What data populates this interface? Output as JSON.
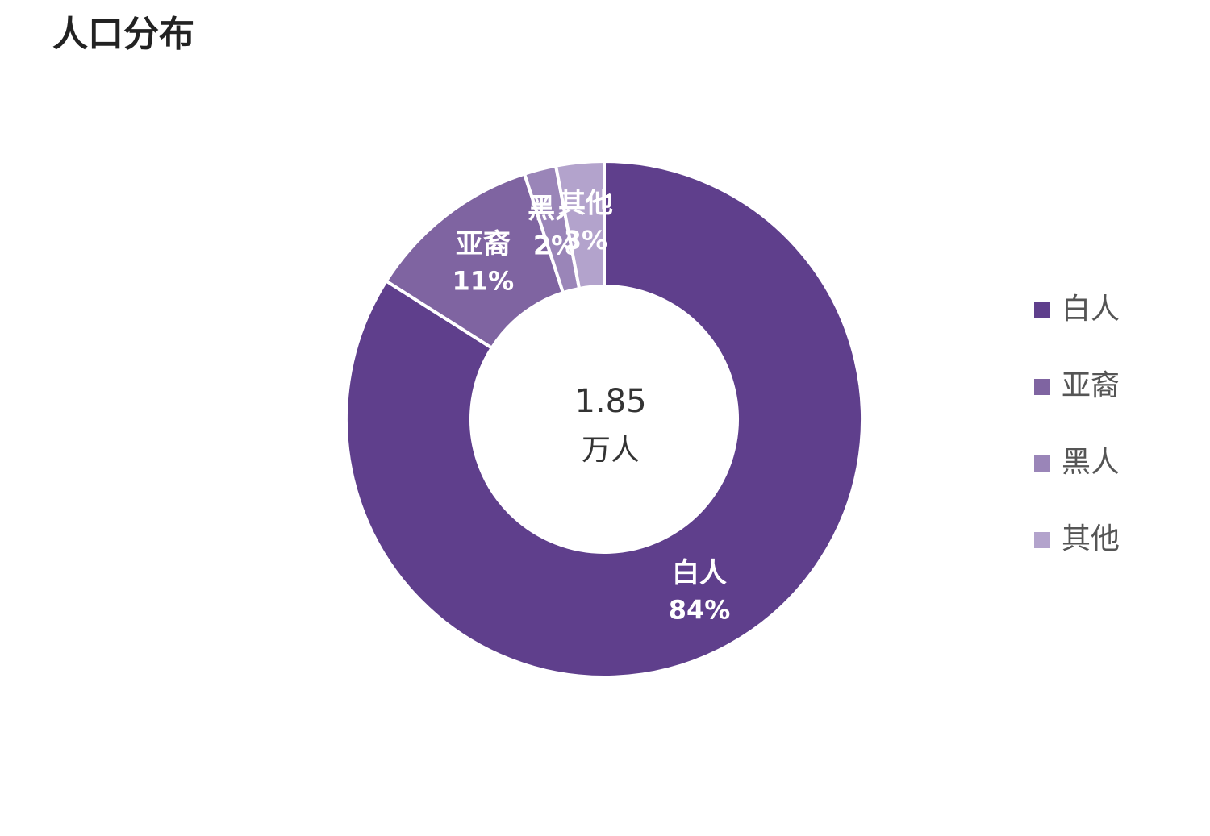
{
  "chart_data": {
    "type": "donut",
    "title": "人口分布",
    "center_text": "1.85",
    "center_unit": "万人",
    "categories": [
      "白人",
      "亚裔",
      "黑人",
      "其他"
    ],
    "values": [
      84,
      11,
      2,
      3
    ],
    "value_labels": [
      "84%",
      "11%",
      "2%",
      "3%"
    ],
    "colors": [
      "#5f3f8c",
      "#7f64a1",
      "#9a85b8",
      "#b3a3cc"
    ],
    "legend": "right"
  }
}
